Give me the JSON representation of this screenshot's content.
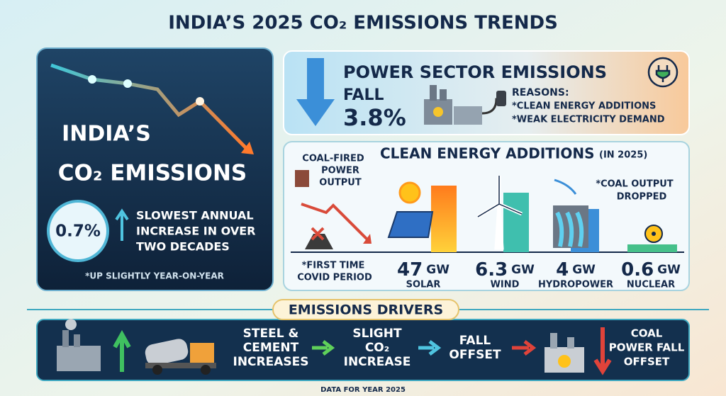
{
  "header": {
    "title": "INDIA’S 2025 CO₂ EMISSIONS TRENDS"
  },
  "overview": {
    "title_lines": [
      "INDIA’S",
      "CO₂ EMISSIONS"
    ],
    "change": "0.7%",
    "description_lines": [
      "SLOWEST ANNUAL",
      "INCREASE IN OVER",
      "TWO DECADES"
    ],
    "footnote": "*UP SLIGHTLY YEAR-ON-YEAR"
  },
  "power_sector": {
    "title": "POWER SECTOR EMISSIONS",
    "direction": "FALL",
    "change": "3.8%",
    "reasons_heading": "REASONS:",
    "reasons": [
      "*CLEAN ENERGY ADDITIONS",
      "*WEAK ELECTRICITY DEMAND"
    ]
  },
  "clean_energy": {
    "title": "CLEAN ENERGY ADDITIONS",
    "subtitle": "(IN 2025)",
    "coal_label_lines": [
      "COAL-FIRED",
      "POWER",
      "OUTPUT"
    ],
    "coal_note_lines": [
      "*COAL OUTPUT",
      "DROPPED"
    ],
    "covid_note_lines": [
      "*FIRST TIME",
      "COVID PERIOD"
    ],
    "items": [
      {
        "value": "47",
        "unit": "GW",
        "label": "SOLAR"
      },
      {
        "value": "6.3",
        "unit": "GW",
        "label": "WIND"
      },
      {
        "value": "4",
        "unit": "GW",
        "label": "HYDROPOWER"
      },
      {
        "value": "0.6",
        "unit": "GW",
        "label": "NUCLEAR"
      }
    ]
  },
  "drivers": {
    "title": "EMISSIONS DRIVERS",
    "steps": [
      [
        "STEEL &",
        "CEMENT",
        "INCREASES"
      ],
      [
        "SLIGHT",
        "CO₂",
        "INCREASE"
      ],
      [
        "FALL",
        "OFFSET"
      ],
      [
        "COAL",
        "POWER FALL",
        "OFFSET"
      ]
    ]
  },
  "footer": {
    "text": "DATA FOR YEAR 2025"
  }
}
